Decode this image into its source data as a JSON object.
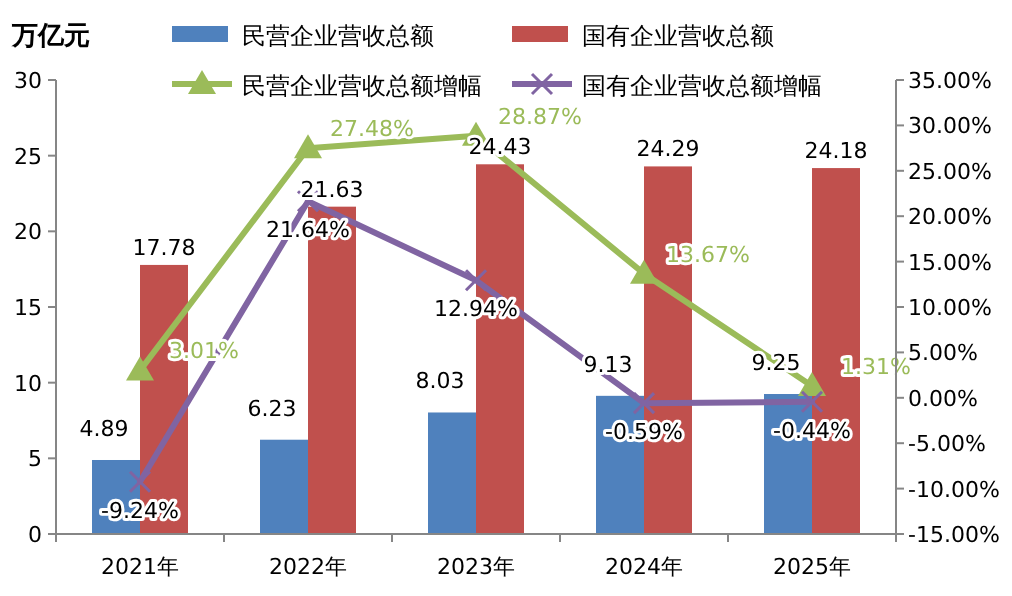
{
  "chart_data": {
    "type": "bar",
    "ylabel": "万亿元",
    "categories": [
      "2021年",
      "2022年",
      "2023年",
      "2024年",
      "2025年"
    ],
    "series": [
      {
        "name": "民营企业营收总额",
        "color": "#4f81bd",
        "values": [
          4.89,
          6.23,
          8.03,
          9.13,
          9.25
        ],
        "value_labels": [
          "4.89",
          "6.23",
          "8.03",
          "9.13",
          "9.25"
        ]
      },
      {
        "name": "国有企业营收总额",
        "color": "#c0504d",
        "values": [
          17.78,
          21.63,
          24.43,
          24.29,
          24.18
        ],
        "value_labels": [
          "17.78",
          "21.63",
          "24.43",
          "24.29",
          "24.18"
        ]
      },
      {
        "name": "民营企业营收总额增幅",
        "type": "line",
        "axis": "y2",
        "marker": "triangle",
        "color": "#9bbb59",
        "values": [
          3.01,
          27.48,
          28.87,
          13.67,
          1.31
        ],
        "value_labels": [
          "3.01%",
          "27.48%",
          "28.87%",
          "13.67%",
          "1.31%"
        ]
      },
      {
        "name": "国有企业营收总额增幅",
        "type": "line",
        "axis": "y2",
        "marker": "cross",
        "color": "#8064a2",
        "values": [
          -9.24,
          21.64,
          12.94,
          -0.59,
          -0.44
        ],
        "value_labels": [
          "-9.24%",
          "21.64%",
          "12.94%",
          "-0.59%",
          "-0.44%"
        ]
      }
    ],
    "ylim": [
      0,
      30
    ],
    "yticks": [
      0,
      5,
      10,
      15,
      20,
      25,
      30
    ],
    "y2lim": [
      -15,
      35
    ],
    "y2ticks": [
      {
        "value": -15,
        "label": "-15.00%"
      },
      {
        "value": -10,
        "label": "-10.00%"
      },
      {
        "value": -5,
        "label": "-5.00%"
      },
      {
        "value": 0,
        "label": "0.00%"
      },
      {
        "value": 5,
        "label": "5.00%"
      },
      {
        "value": 10,
        "label": "10.00%"
      },
      {
        "value": 15,
        "label": "15.00%"
      },
      {
        "value": 20,
        "label": "20.00%"
      },
      {
        "value": 25,
        "label": "25.00%"
      },
      {
        "value": 30,
        "label": "30.00%"
      },
      {
        "value": 35,
        "label": "35.00%"
      }
    ],
    "legend": "top",
    "grid": false
  }
}
